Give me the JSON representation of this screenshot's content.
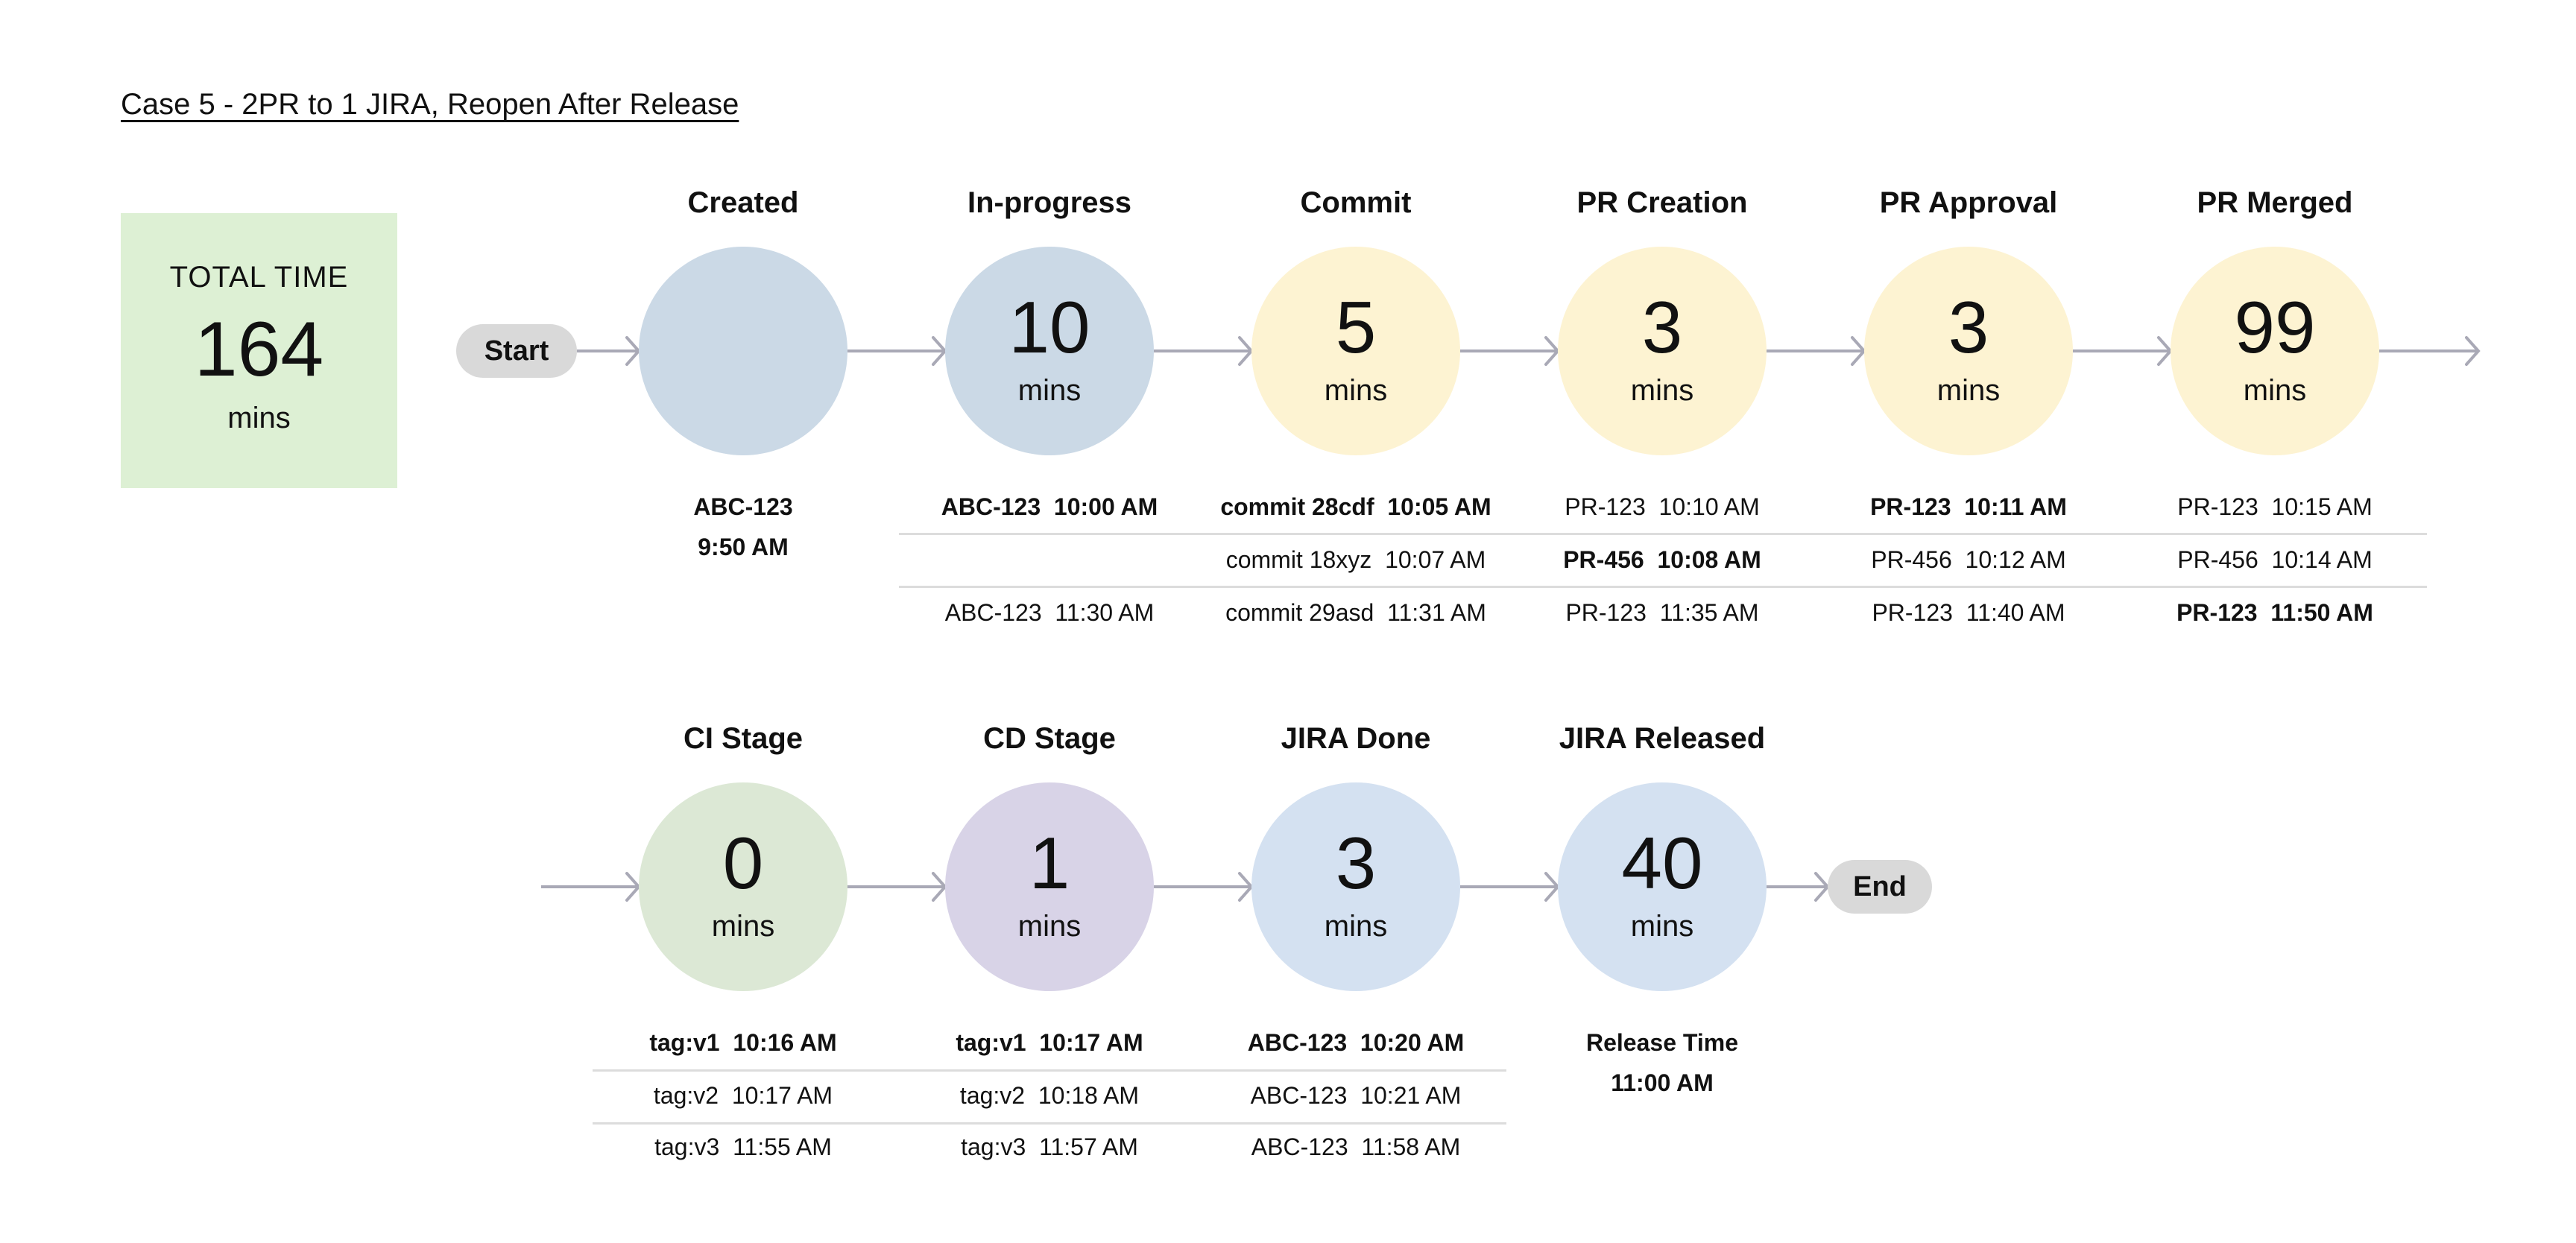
{
  "title": "Case 5 - 2PR to 1 JIRA, Reopen After Release",
  "total": {
    "label": "TOTAL TIME",
    "value": "164",
    "unit": "mins",
    "color": "#ddf0d4"
  },
  "start_label": "Start",
  "end_label": "End",
  "colors": {
    "connector": "#a9a9b6",
    "pill": "#d9d9d9",
    "divider": "#dcdcdc"
  },
  "rows": [
    {
      "stages": [
        {
          "name": "Created",
          "value": "",
          "unit": "",
          "color": "#cbd9e6",
          "details": [
            {
              "text": "ABC-123",
              "bold": true
            },
            {
              "text": "9:50 AM",
              "bold": true
            }
          ]
        },
        {
          "name": "In-progress",
          "value": "10",
          "unit": "mins",
          "color": "#cbd9e6",
          "details": [
            {
              "text": "ABC-123  10:00 AM",
              "bold": true
            },
            {
              "text": "",
              "bold": false
            },
            {
              "text": "ABC-123  11:30 AM",
              "bold": false
            }
          ]
        },
        {
          "name": "Commit",
          "value": "5",
          "unit": "mins",
          "color": "#fdf3d2",
          "details": [
            {
              "text": "commit 28cdf  10:05 AM",
              "bold": true
            },
            {
              "text": "commit 18xyz  10:07 AM",
              "bold": false
            },
            {
              "text": "commit 29asd  11:31 AM",
              "bold": false
            }
          ]
        },
        {
          "name": "PR Creation",
          "value": "3",
          "unit": "mins",
          "color": "#fdf3d2",
          "details": [
            {
              "text": "PR-123  10:10 AM",
              "bold": false
            },
            {
              "text": "PR-456  10:08 AM",
              "bold": true
            },
            {
              "text": "PR-123  11:35 AM",
              "bold": false
            }
          ]
        },
        {
          "name": "PR Approval",
          "value": "3",
          "unit": "mins",
          "color": "#fdf3d2",
          "details": [
            {
              "text": "PR-123  10:11 AM",
              "bold": true
            },
            {
              "text": "PR-456  10:12 AM",
              "bold": false
            },
            {
              "text": "PR-123  11:40 AM",
              "bold": false
            }
          ]
        },
        {
          "name": "PR Merged",
          "value": "99",
          "unit": "mins",
          "color": "#fdf3d2",
          "details": [
            {
              "text": "PR-123  10:15 AM",
              "bold": false
            },
            {
              "text": "PR-456  10:14 AM",
              "bold": false
            },
            {
              "text": "PR-123  11:50 AM",
              "bold": true
            }
          ]
        }
      ]
    },
    {
      "stages": [
        {
          "name": "CI Stage",
          "value": "0",
          "unit": "mins",
          "color": "#dce8d5",
          "details": [
            {
              "text": "tag:v1  10:16 AM",
              "bold": true
            },
            {
              "text": "tag:v2  10:17 AM",
              "bold": false
            },
            {
              "text": "tag:v3  11:55 AM",
              "bold": false
            }
          ]
        },
        {
          "name": "CD Stage",
          "value": "1",
          "unit": "mins",
          "color": "#d8d3e7",
          "details": [
            {
              "text": "tag:v1  10:17 AM",
              "bold": true
            },
            {
              "text": "tag:v2  10:18 AM",
              "bold": false
            },
            {
              "text": "tag:v3  11:57 AM",
              "bold": false
            }
          ]
        },
        {
          "name": "JIRA Done",
          "value": "3",
          "unit": "mins",
          "color": "#d4e1f1",
          "details": [
            {
              "text": "ABC-123  10:20 AM",
              "bold": true
            },
            {
              "text": "ABC-123  10:21 AM",
              "bold": false
            },
            {
              "text": "ABC-123  11:58 AM",
              "bold": false
            }
          ]
        },
        {
          "name": "JIRA Released",
          "value": "40",
          "unit": "mins",
          "color": "#d4e1f1",
          "details": [
            {
              "text": "Release Time",
              "bold": true
            },
            {
              "text": "11:00 AM",
              "bold": true
            }
          ]
        }
      ]
    }
  ]
}
